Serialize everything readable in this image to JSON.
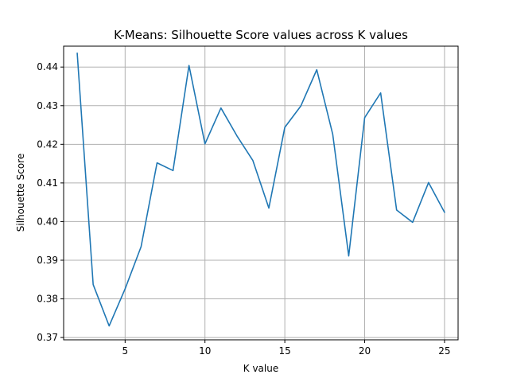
{
  "chart_data": {
    "type": "line",
    "title": "K-Means: Silhouette Score values across K values",
    "xlabel": "K value",
    "ylabel": "Silhouette Score",
    "xlim": [
      1.15,
      25.85
    ],
    "ylim": [
      0.3694,
      0.4454
    ],
    "xticks": [
      5,
      10,
      15,
      20,
      25
    ],
    "xtick_labels": [
      "5",
      "10",
      "15",
      "20",
      "25"
    ],
    "yticks": [
      0.37,
      0.38,
      0.39,
      0.4,
      0.41,
      0.42,
      0.43,
      0.44
    ],
    "ytick_labels": [
      "0.37",
      "0.38",
      "0.39",
      "0.40",
      "0.41",
      "0.42",
      "0.43",
      "0.44"
    ],
    "grid": true,
    "series": [
      {
        "color": "#1f77b4",
        "x": [
          2,
          3,
          4,
          5,
          6,
          7,
          8,
          9,
          10,
          11,
          12,
          13,
          14,
          15,
          16,
          17,
          18,
          19,
          20,
          21,
          22,
          23,
          24,
          25
        ],
        "values": [
          0.4436,
          0.3837,
          0.373,
          0.3826,
          0.3935,
          0.4152,
          0.4132,
          0.4404,
          0.4201,
          0.4294,
          0.4222,
          0.4158,
          0.4035,
          0.4244,
          0.4299,
          0.4393,
          0.4226,
          0.3911,
          0.4269,
          0.4333,
          0.403,
          0.3998,
          0.4101,
          0.4024
        ]
      }
    ]
  }
}
